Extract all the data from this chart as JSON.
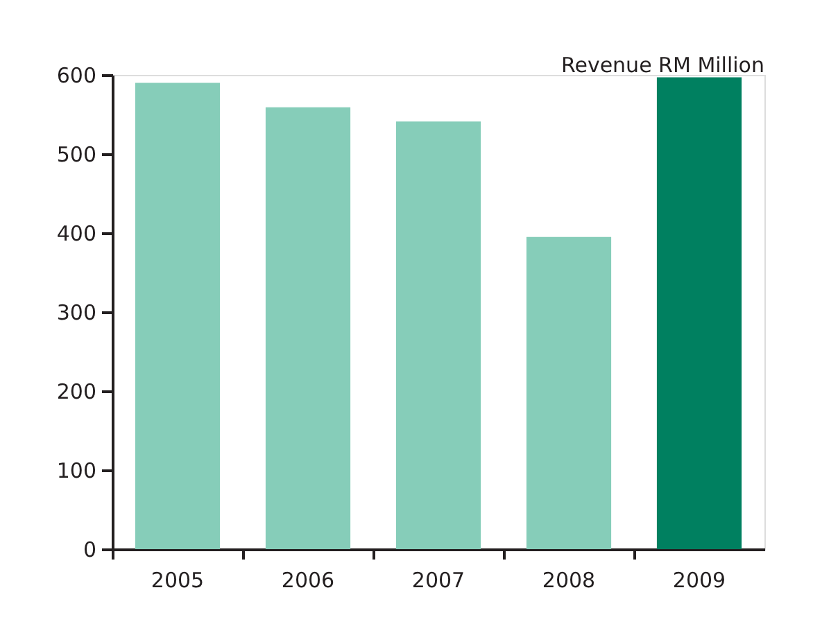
{
  "chart_data": {
    "type": "bar",
    "title": "Revenue RM Million",
    "categories": [
      "2005",
      "2006",
      "2007",
      "2008",
      "2009"
    ],
    "values": [
      590,
      559,
      541,
      395,
      597
    ],
    "colors": [
      "#86cdb9",
      "#86cdb9",
      "#86cdb9",
      "#86cdb9",
      "#008060"
    ],
    "ylim": [
      0,
      600
    ],
    "yticks": [
      0,
      100,
      200,
      300,
      400,
      500,
      600
    ],
    "grid": false,
    "legend": false
  }
}
